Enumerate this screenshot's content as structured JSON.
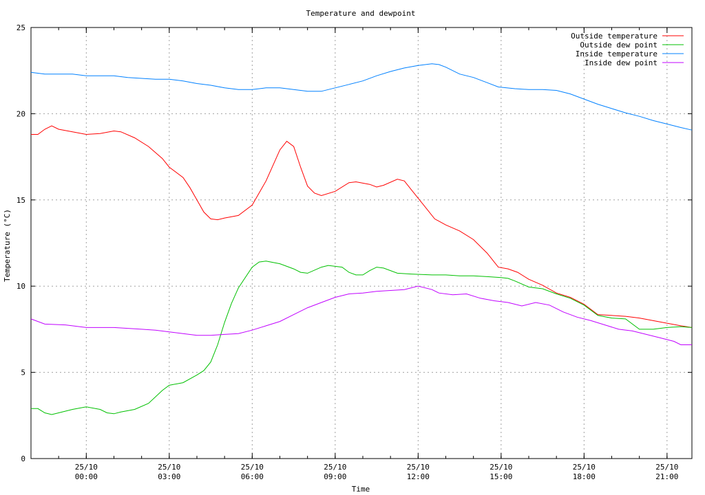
{
  "chart_data": {
    "type": "line",
    "title": "Temperature and dewpoint",
    "xlabel": "Time",
    "ylabel": "Temperature (°C)",
    "ylim": [
      0,
      25
    ],
    "yticks": [
      0,
      5,
      10,
      15,
      20,
      25
    ],
    "xlim": [
      -2.0,
      21.9
    ],
    "xticks": [
      {
        "value": 0,
        "date": "25/10",
        "time": "00:00"
      },
      {
        "value": 3,
        "date": "25/10",
        "time": "03:00"
      },
      {
        "value": 6,
        "date": "25/10",
        "time": "06:00"
      },
      {
        "value": 9,
        "date": "25/10",
        "time": "09:00"
      },
      {
        "value": 12,
        "date": "25/10",
        "time": "12:00"
      },
      {
        "value": 15,
        "date": "25/10",
        "time": "15:00"
      },
      {
        "value": 18,
        "date": "25/10",
        "time": "18:00"
      },
      {
        "value": 21,
        "date": "25/10",
        "time": "21:00"
      }
    ],
    "grid": true,
    "legend_position": "top-right",
    "series": [
      {
        "name": "Outside temperature",
        "color": "#ff0000",
        "points": [
          [
            -2.0,
            18.8
          ],
          [
            -1.75,
            18.8
          ],
          [
            -1.5,
            19.1
          ],
          [
            -1.25,
            19.3
          ],
          [
            -1.0,
            19.1
          ],
          [
            -0.5,
            18.95
          ],
          [
            0.0,
            18.8
          ],
          [
            0.5,
            18.85
          ],
          [
            1.0,
            19.0
          ],
          [
            1.25,
            18.95
          ],
          [
            1.75,
            18.6
          ],
          [
            2.25,
            18.1
          ],
          [
            2.75,
            17.4
          ],
          [
            3.0,
            16.9
          ],
          [
            3.5,
            16.3
          ],
          [
            3.75,
            15.7
          ],
          [
            4.0,
            15.0
          ],
          [
            4.25,
            14.3
          ],
          [
            4.5,
            13.9
          ],
          [
            4.75,
            13.85
          ],
          [
            5.0,
            13.95
          ],
          [
            5.5,
            14.1
          ],
          [
            6.0,
            14.7
          ],
          [
            6.5,
            16.1
          ],
          [
            7.0,
            17.9
          ],
          [
            7.25,
            18.4
          ],
          [
            7.5,
            18.1
          ],
          [
            7.75,
            16.9
          ],
          [
            8.0,
            15.8
          ],
          [
            8.25,
            15.4
          ],
          [
            8.5,
            15.25
          ],
          [
            9.0,
            15.5
          ],
          [
            9.5,
            16.0
          ],
          [
            9.75,
            16.05
          ],
          [
            10.25,
            15.9
          ],
          [
            10.5,
            15.75
          ],
          [
            10.75,
            15.85
          ],
          [
            11.25,
            16.2
          ],
          [
            11.5,
            16.1
          ],
          [
            11.75,
            15.6
          ],
          [
            12.25,
            14.6
          ],
          [
            12.6,
            13.9
          ],
          [
            13.0,
            13.55
          ],
          [
            13.5,
            13.2
          ],
          [
            14.0,
            12.7
          ],
          [
            14.5,
            11.9
          ],
          [
            14.9,
            11.1
          ],
          [
            15.25,
            11.0
          ],
          [
            15.6,
            10.8
          ],
          [
            16.0,
            10.4
          ],
          [
            16.5,
            10.05
          ],
          [
            17.0,
            9.6
          ],
          [
            17.5,
            9.35
          ],
          [
            18.0,
            8.95
          ],
          [
            18.5,
            8.35
          ],
          [
            19.0,
            8.3
          ],
          [
            19.5,
            8.25
          ],
          [
            20.0,
            8.15
          ],
          [
            20.5,
            8.0
          ],
          [
            21.0,
            7.85
          ],
          [
            21.5,
            7.7
          ],
          [
            21.9,
            7.6
          ]
        ]
      },
      {
        "name": "Outside dew point",
        "color": "#00c000",
        "points": [
          [
            -2.0,
            2.9
          ],
          [
            -1.75,
            2.9
          ],
          [
            -1.5,
            2.65
          ],
          [
            -1.25,
            2.55
          ],
          [
            -1.0,
            2.65
          ],
          [
            -0.5,
            2.85
          ],
          [
            0.0,
            3.0
          ],
          [
            0.5,
            2.85
          ],
          [
            0.75,
            2.65
          ],
          [
            1.0,
            2.6
          ],
          [
            1.25,
            2.7
          ],
          [
            1.75,
            2.85
          ],
          [
            2.25,
            3.2
          ],
          [
            2.75,
            3.95
          ],
          [
            3.0,
            4.25
          ],
          [
            3.5,
            4.4
          ],
          [
            4.0,
            4.85
          ],
          [
            4.25,
            5.1
          ],
          [
            4.5,
            5.6
          ],
          [
            4.75,
            6.6
          ],
          [
            5.0,
            7.9
          ],
          [
            5.25,
            9.0
          ],
          [
            5.5,
            9.9
          ],
          [
            6.0,
            11.1
          ],
          [
            6.25,
            11.4
          ],
          [
            6.5,
            11.45
          ],
          [
            7.0,
            11.3
          ],
          [
            7.5,
            11.0
          ],
          [
            7.75,
            10.8
          ],
          [
            8.0,
            10.75
          ],
          [
            8.5,
            11.1
          ],
          [
            8.75,
            11.2
          ],
          [
            9.25,
            11.1
          ],
          [
            9.5,
            10.8
          ],
          [
            9.75,
            10.65
          ],
          [
            10.0,
            10.65
          ],
          [
            10.25,
            10.9
          ],
          [
            10.5,
            11.1
          ],
          [
            10.75,
            11.05
          ],
          [
            11.25,
            10.75
          ],
          [
            11.75,
            10.7
          ],
          [
            12.5,
            10.65
          ],
          [
            13.0,
            10.65
          ],
          [
            13.5,
            10.6
          ],
          [
            14.0,
            10.6
          ],
          [
            14.5,
            10.55
          ],
          [
            15.0,
            10.5
          ],
          [
            15.25,
            10.45
          ],
          [
            15.5,
            10.3
          ],
          [
            16.0,
            9.95
          ],
          [
            16.5,
            9.85
          ],
          [
            17.0,
            9.55
          ],
          [
            17.5,
            9.3
          ],
          [
            18.0,
            8.9
          ],
          [
            18.5,
            8.3
          ],
          [
            19.0,
            8.15
          ],
          [
            19.5,
            8.1
          ],
          [
            20.0,
            7.5
          ],
          [
            20.5,
            7.5
          ],
          [
            21.0,
            7.6
          ],
          [
            21.5,
            7.65
          ],
          [
            21.9,
            7.6
          ]
        ]
      },
      {
        "name": "Inside temperature",
        "color": "#0080ff",
        "points": [
          [
            -2.0,
            22.4
          ],
          [
            -1.5,
            22.3
          ],
          [
            -0.5,
            22.3
          ],
          [
            0.0,
            22.2
          ],
          [
            1.0,
            22.2
          ],
          [
            1.5,
            22.1
          ],
          [
            2.5,
            22.0
          ],
          [
            3.0,
            22.0
          ],
          [
            3.5,
            21.9
          ],
          [
            4.0,
            21.75
          ],
          [
            4.5,
            21.65
          ],
          [
            5.0,
            21.5
          ],
          [
            5.5,
            21.4
          ],
          [
            6.0,
            21.4
          ],
          [
            6.5,
            21.5
          ],
          [
            7.0,
            21.5
          ],
          [
            7.5,
            21.4
          ],
          [
            8.0,
            21.3
          ],
          [
            8.5,
            21.3
          ],
          [
            9.0,
            21.5
          ],
          [
            9.5,
            21.7
          ],
          [
            10.0,
            21.9
          ],
          [
            10.5,
            22.2
          ],
          [
            11.0,
            22.45
          ],
          [
            11.5,
            22.65
          ],
          [
            12.0,
            22.8
          ],
          [
            12.5,
            22.9
          ],
          [
            12.75,
            22.85
          ],
          [
            13.0,
            22.7
          ],
          [
            13.5,
            22.3
          ],
          [
            14.0,
            22.1
          ],
          [
            14.5,
            21.8
          ],
          [
            14.9,
            21.55
          ],
          [
            15.5,
            21.45
          ],
          [
            16.0,
            21.4
          ],
          [
            16.5,
            21.4
          ],
          [
            17.0,
            21.35
          ],
          [
            17.5,
            21.15
          ],
          [
            18.0,
            20.85
          ],
          [
            18.5,
            20.55
          ],
          [
            19.0,
            20.3
          ],
          [
            19.5,
            20.05
          ],
          [
            20.0,
            19.85
          ],
          [
            20.5,
            19.6
          ],
          [
            21.0,
            19.4
          ],
          [
            21.5,
            19.2
          ],
          [
            21.9,
            19.05
          ]
        ]
      },
      {
        "name": "Inside dew point",
        "color": "#c000ff",
        "points": [
          [
            -2.0,
            8.1
          ],
          [
            -1.5,
            7.8
          ],
          [
            -0.75,
            7.75
          ],
          [
            0.0,
            7.6
          ],
          [
            1.0,
            7.6
          ],
          [
            1.5,
            7.55
          ],
          [
            2.0,
            7.5
          ],
          [
            2.5,
            7.45
          ],
          [
            3.0,
            7.35
          ],
          [
            3.5,
            7.25
          ],
          [
            4.0,
            7.15
          ],
          [
            4.5,
            7.15
          ],
          [
            5.0,
            7.2
          ],
          [
            5.5,
            7.25
          ],
          [
            6.0,
            7.45
          ],
          [
            6.5,
            7.7
          ],
          [
            7.0,
            7.95
          ],
          [
            7.5,
            8.35
          ],
          [
            8.0,
            8.75
          ],
          [
            8.5,
            9.05
          ],
          [
            9.0,
            9.35
          ],
          [
            9.5,
            9.55
          ],
          [
            10.0,
            9.6
          ],
          [
            10.5,
            9.7
          ],
          [
            11.0,
            9.75
          ],
          [
            11.5,
            9.8
          ],
          [
            12.0,
            10.0
          ],
          [
            12.5,
            9.8
          ],
          [
            12.75,
            9.6
          ],
          [
            13.25,
            9.5
          ],
          [
            13.75,
            9.55
          ],
          [
            14.25,
            9.3
          ],
          [
            14.75,
            9.15
          ],
          [
            15.25,
            9.05
          ],
          [
            15.75,
            8.85
          ],
          [
            16.25,
            9.05
          ],
          [
            16.75,
            8.9
          ],
          [
            17.25,
            8.5
          ],
          [
            17.75,
            8.2
          ],
          [
            18.25,
            8.0
          ],
          [
            18.75,
            7.75
          ],
          [
            19.25,
            7.5
          ],
          [
            19.75,
            7.4
          ],
          [
            20.25,
            7.2
          ],
          [
            20.75,
            7.0
          ],
          [
            21.25,
            6.8
          ],
          [
            21.5,
            6.6
          ],
          [
            21.9,
            6.6
          ]
        ]
      }
    ]
  }
}
